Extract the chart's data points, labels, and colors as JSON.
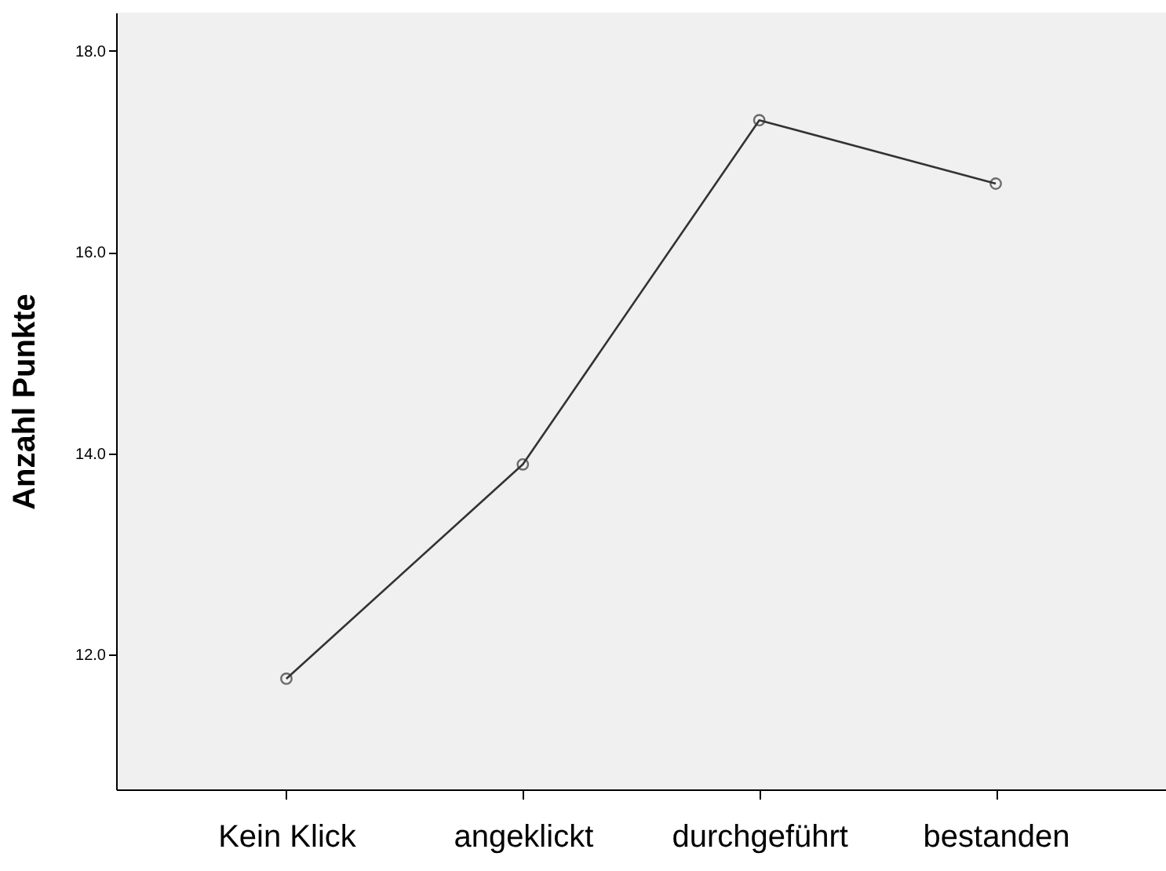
{
  "chart_data": {
    "type": "line",
    "ylabel": "Anzahl Punkte",
    "categories": [
      "Kein Klick",
      "angeklickt",
      "durchgeführt",
      "bestanden"
    ],
    "series": [
      {
        "color": "#333333",
        "values": [
          11.76,
          13.89,
          17.31,
          16.68
        ]
      }
    ],
    "ylim": [
      10.66,
      18.38
    ],
    "yticks": [
      {
        "value": 12,
        "label": "12.0"
      },
      {
        "value": 14,
        "label": "14.0"
      },
      {
        "value": 16,
        "label": "16.0"
      },
      {
        "value": 18,
        "label": "18.0"
      }
    ],
    "marker": "circle",
    "line_style": "solid",
    "grid": false
  }
}
